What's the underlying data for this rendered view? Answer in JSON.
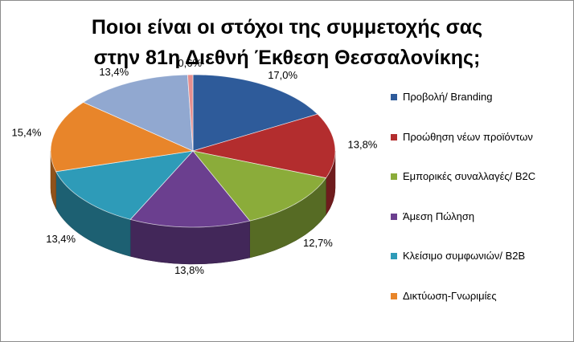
{
  "chart_data": {
    "type": "pie",
    "title_lines": [
      "Ποιοι είναι οι στόχοι της συμμετοχής σας",
      "στην 81η Διεθνή Έκθεση Θεσσαλονίκης;"
    ],
    "categories": [
      "Προβολή/ Branding",
      "Προώθηση νέων προϊόντων",
      "Εμπορικές συναλλαγές/ B2C",
      "Άμεση Πώληση",
      "Κλείσιμο συμφωνιών/ B2B",
      "Δικτύωση-Γνωριμίες",
      "",
      ""
    ],
    "values": [
      17.0,
      13.8,
      12.7,
      13.8,
      13.4,
      15.4,
      13.4,
      0.6
    ],
    "value_labels": [
      "17,0%",
      "13,8%",
      "12,7%",
      "13,8%",
      "13,4%",
      "15,4%",
      "13,4%",
      "0,6%"
    ],
    "colors": [
      "#2e5b9a",
      "#b32d2e",
      "#8bac3a",
      "#6b3f8f",
      "#2e9bb8",
      "#e8852a",
      "#91a8d0",
      "#e58f8f"
    ],
    "legend_count": 6,
    "legend_position": "right",
    "style": "3d"
  }
}
